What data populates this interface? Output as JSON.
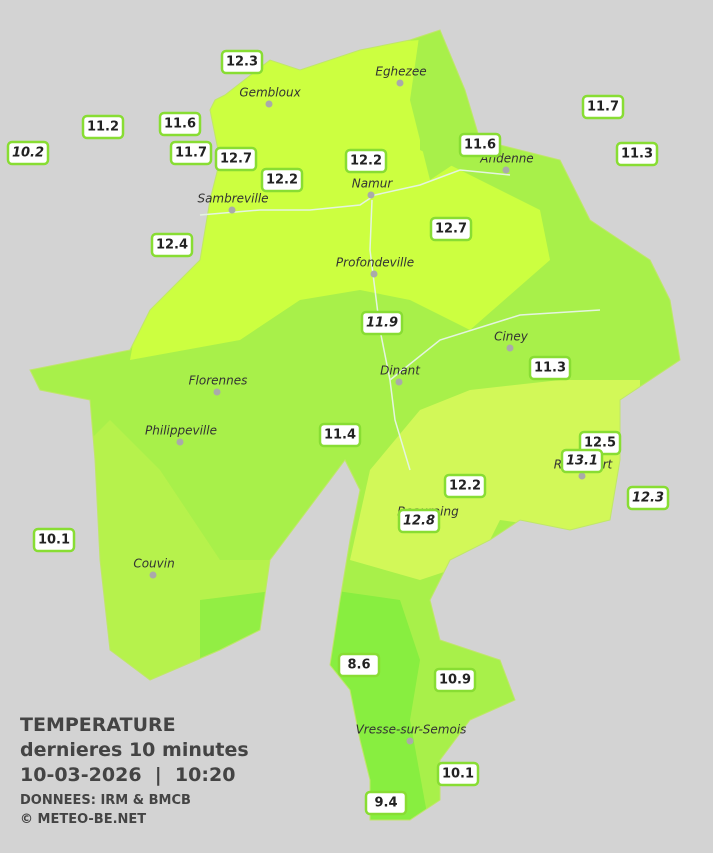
{
  "title": {
    "line1": "TEMPERATURE",
    "line2": "dernieres 10 minutes",
    "line3": "10-03-2026  |  10:20",
    "source": "DONNEES: IRM & BMCB",
    "copyright": "© METEO-BE.NET"
  },
  "towns": [
    "Eghezee",
    "Gembloux",
    "Andenne",
    "Namur",
    "Sambreville",
    "Profondeville",
    "Ciney",
    "Dinant",
    "Florennes",
    "Philippeville",
    "Couvin",
    "Vresse-sur-Semois",
    "Rochefort",
    "Beauraing"
  ],
  "stations": [
    {
      "value": 12.3
    },
    {
      "value": 11.2
    },
    {
      "value": 10.2,
      "italic": true
    },
    {
      "value": 11.6
    },
    {
      "value": 11.7
    },
    {
      "value": 12.7
    },
    {
      "value": 12.2
    },
    {
      "value": 12.2
    },
    {
      "value": 11.6
    },
    {
      "value": 11.7
    },
    {
      "value": 11.3
    },
    {
      "value": 12.4
    },
    {
      "value": 12.7
    },
    {
      "value": 11.9,
      "italic": true
    },
    {
      "value": 11.3
    },
    {
      "value": 11.4
    },
    {
      "value": 12.5
    },
    {
      "value": 13.1,
      "italic": true
    },
    {
      "value": 12.3,
      "italic": true
    },
    {
      "value": 12.2
    },
    {
      "value": 12.8,
      "italic": true
    },
    {
      "value": 10.1
    },
    {
      "value": 8.6
    },
    {
      "value": 10.9
    },
    {
      "value": 10.1
    },
    {
      "value": 9.4
    }
  ]
}
